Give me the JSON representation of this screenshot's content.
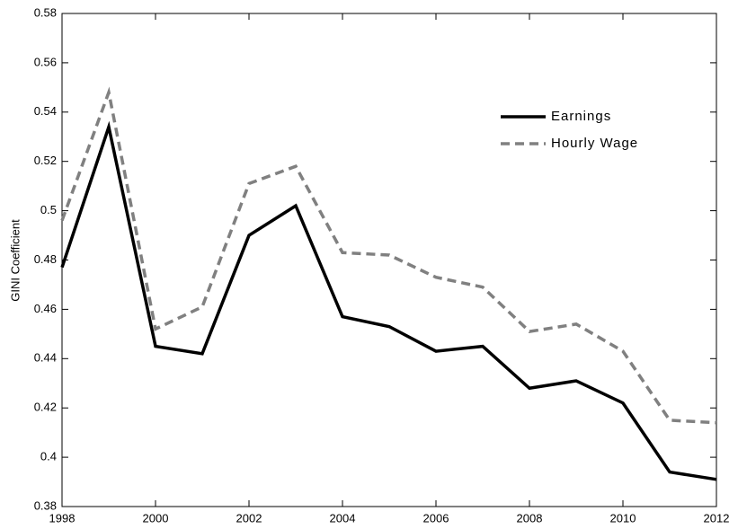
{
  "chart_data": {
    "type": "line",
    "ylabel": "GINI Coefficient",
    "x": [
      1998,
      1999,
      2000,
      2001,
      2002,
      2003,
      2004,
      2005,
      2006,
      2007,
      2008,
      2009,
      2010,
      2011,
      2012
    ],
    "series": [
      {
        "name": "Earnings",
        "color": "#000000",
        "dash": "solid",
        "values": [
          0.477,
          0.534,
          0.445,
          0.442,
          0.49,
          0.502,
          0.457,
          0.453,
          0.443,
          0.445,
          0.428,
          0.431,
          0.422,
          0.394,
          0.391
        ]
      },
      {
        "name": "Hourly Wage",
        "color": "#808080",
        "dash": "dashed",
        "values": [
          0.496,
          0.548,
          0.452,
          0.461,
          0.511,
          0.518,
          0.483,
          0.482,
          0.473,
          0.469,
          0.451,
          0.454,
          0.443,
          0.415,
          0.414
        ]
      }
    ],
    "xlim": [
      1998,
      2012
    ],
    "xticks": [
      1998,
      2000,
      2002,
      2004,
      2006,
      2008,
      2010,
      2012
    ],
    "ylim": [
      0.38,
      0.58
    ],
    "yticks": [
      0.38,
      0.4,
      0.42,
      0.44,
      0.46,
      0.48,
      0.5,
      0.52,
      0.54,
      0.56,
      0.58
    ],
    "grid": false,
    "legend": "upper right"
  }
}
